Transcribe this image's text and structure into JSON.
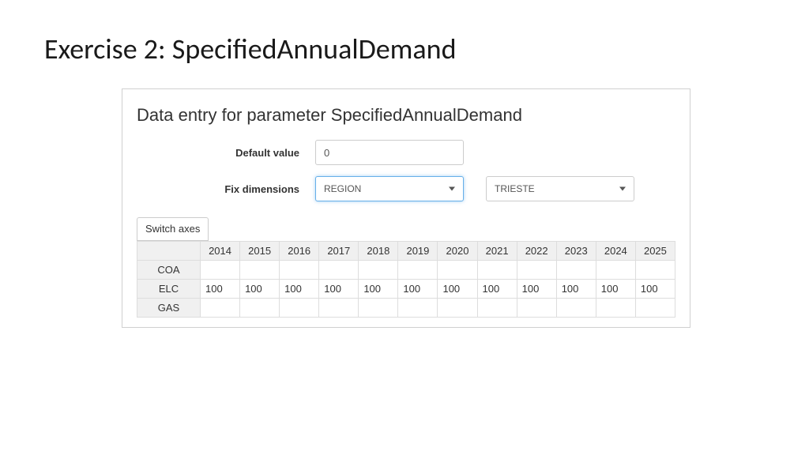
{
  "slide": {
    "title": "Exercise 2: SpecifiedAnnualDemand"
  },
  "panel": {
    "title": "Data entry for parameter SpecifiedAnnualDemand",
    "default_value_label": "Default value",
    "default_value": "0",
    "fix_dimensions_label": "Fix dimensions",
    "dimension_select": "REGION",
    "value_select": "TRIESTE",
    "switch_axes_label": "Switch axes"
  },
  "table": {
    "columns": [
      "2014",
      "2015",
      "2016",
      "2017",
      "2018",
      "2019",
      "2020",
      "2021",
      "2022",
      "2023",
      "2024",
      "2025"
    ],
    "rows": [
      {
        "label": "COA",
        "values": [
          "",
          "",
          "",
          "",
          "",
          "",
          "",
          "",
          "",
          "",
          "",
          ""
        ]
      },
      {
        "label": "ELC",
        "values": [
          "100",
          "100",
          "100",
          "100",
          "100",
          "100",
          "100",
          "100",
          "100",
          "100",
          "100",
          "100"
        ]
      },
      {
        "label": "GAS",
        "values": [
          "",
          "",
          "",
          "",
          "",
          "",
          "",
          "",
          "",
          "",
          "",
          ""
        ]
      }
    ],
    "header_bg": "#f0f0f0",
    "border_color": "#dddddd",
    "text_color": "#333333"
  }
}
